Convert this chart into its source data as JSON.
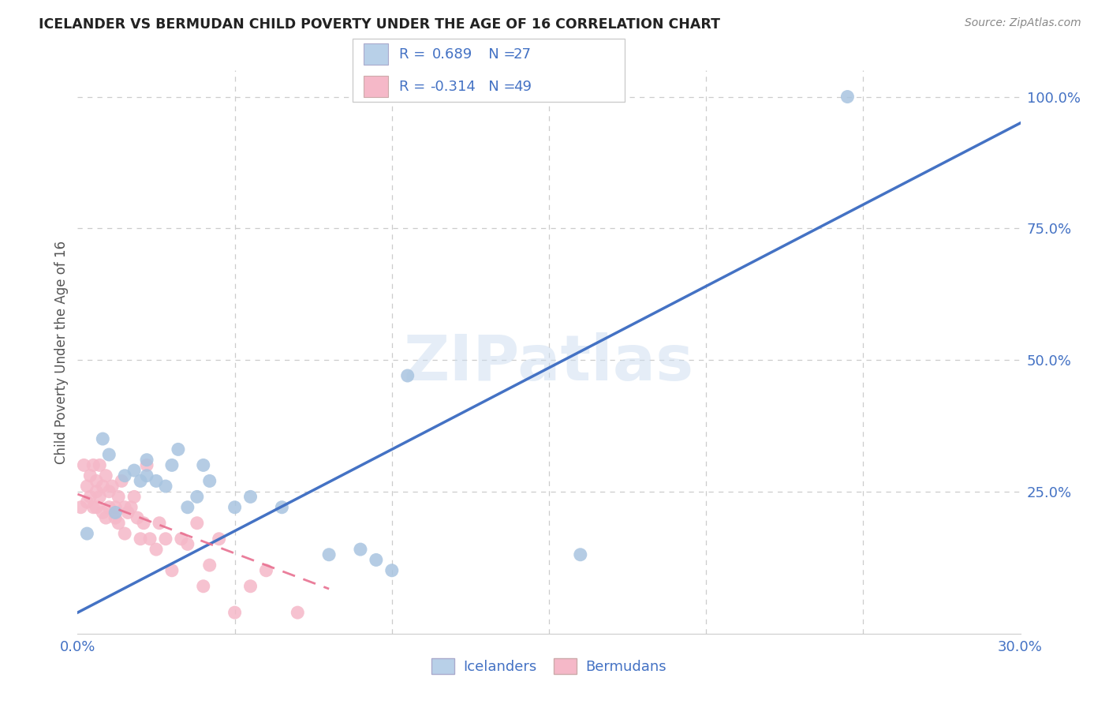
{
  "title": "ICELANDER VS BERMUDAN CHILD POVERTY UNDER THE AGE OF 16 CORRELATION CHART",
  "source": "Source: ZipAtlas.com",
  "ylabel": "Child Poverty Under the Age of 16",
  "xlim": [
    0.0,
    0.3
  ],
  "ylim": [
    -0.02,
    1.05
  ],
  "xticks": [
    0.0,
    0.05,
    0.1,
    0.15,
    0.2,
    0.25,
    0.3
  ],
  "xtick_labels": [
    "0.0%",
    "",
    "",
    "",
    "",
    "",
    "30.0%"
  ],
  "yticks": [
    0.0,
    0.25,
    0.5,
    0.75,
    1.0
  ],
  "ytick_labels": [
    "",
    "25.0%",
    "50.0%",
    "75.0%",
    "100.0%"
  ],
  "background_color": "#ffffff",
  "grid_color": "#cccccc",
  "watermark": "ZIPatlas",
  "icelanders": {
    "color": "#a8c4e0",
    "R": 0.689,
    "N": 27,
    "line_color": "#4472c4",
    "label": "Icelanders",
    "x": [
      0.003,
      0.008,
      0.01,
      0.012,
      0.015,
      0.018,
      0.02,
      0.022,
      0.022,
      0.025,
      0.028,
      0.03,
      0.032,
      0.035,
      0.038,
      0.04,
      0.042,
      0.05,
      0.055,
      0.065,
      0.08,
      0.09,
      0.095,
      0.1,
      0.105,
      0.16,
      0.245
    ],
    "y": [
      0.17,
      0.35,
      0.32,
      0.21,
      0.28,
      0.29,
      0.27,
      0.31,
      0.28,
      0.27,
      0.26,
      0.3,
      0.33,
      0.22,
      0.24,
      0.3,
      0.27,
      0.22,
      0.24,
      0.22,
      0.13,
      0.14,
      0.12,
      0.1,
      0.47,
      0.13,
      1.0
    ],
    "trend_x": [
      0.0,
      0.3
    ],
    "trend_y": [
      0.02,
      0.95
    ]
  },
  "bermudans": {
    "color": "#f5b8c8",
    "R": -0.314,
    "N": 49,
    "line_color": "#e87090",
    "label": "Bermudans",
    "x": [
      0.001,
      0.002,
      0.003,
      0.003,
      0.004,
      0.004,
      0.005,
      0.005,
      0.006,
      0.006,
      0.006,
      0.007,
      0.007,
      0.008,
      0.008,
      0.009,
      0.009,
      0.01,
      0.01,
      0.011,
      0.012,
      0.012,
      0.013,
      0.013,
      0.014,
      0.015,
      0.015,
      0.016,
      0.017,
      0.018,
      0.019,
      0.02,
      0.021,
      0.022,
      0.023,
      0.025,
      0.026,
      0.028,
      0.03,
      0.033,
      0.035,
      0.038,
      0.04,
      0.042,
      0.045,
      0.05,
      0.055,
      0.06,
      0.07
    ],
    "y": [
      0.22,
      0.3,
      0.26,
      0.23,
      0.28,
      0.24,
      0.3,
      0.22,
      0.27,
      0.25,
      0.22,
      0.3,
      0.24,
      0.26,
      0.21,
      0.28,
      0.2,
      0.25,
      0.22,
      0.26,
      0.2,
      0.22,
      0.24,
      0.19,
      0.27,
      0.22,
      0.17,
      0.21,
      0.22,
      0.24,
      0.2,
      0.16,
      0.19,
      0.3,
      0.16,
      0.14,
      0.19,
      0.16,
      0.1,
      0.16,
      0.15,
      0.19,
      0.07,
      0.11,
      0.16,
      0.02,
      0.07,
      0.1,
      0.02
    ],
    "trend_x": [
      0.0,
      0.08
    ],
    "trend_y": [
      0.245,
      0.065
    ]
  },
  "legend_box_color_icelander": "#b8d0e8",
  "legend_box_color_bermudan": "#f5b8c8",
  "legend_border_color": "#cccccc",
  "legend_text_color": "#4472c4",
  "legend_neg_color": "#9999cc",
  "tick_color": "#4472c4",
  "title_color": "#222222",
  "source_color": "#888888",
  "ylabel_color": "#555555"
}
